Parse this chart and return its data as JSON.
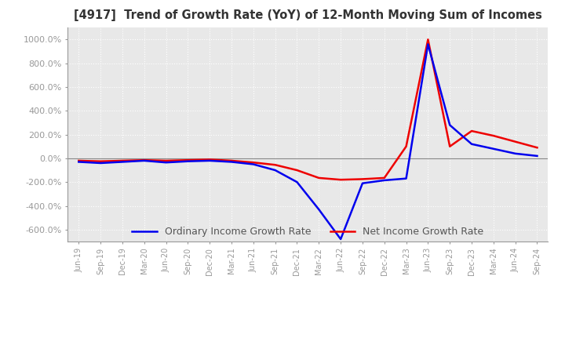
{
  "title": "[4917]  Trend of Growth Rate (YoY) of 12-Month Moving Sum of Incomes",
  "ylim": [
    -700,
    1100
  ],
  "yticks": [
    -600,
    -400,
    -200,
    0,
    200,
    400,
    600,
    800,
    1000
  ],
  "background_color": "#ffffff",
  "plot_bg_color": "#e8e8e8",
  "grid_color": "#ffffff",
  "ordinary_color": "#0000ee",
  "net_color": "#ee0000",
  "legend_labels": [
    "Ordinary Income Growth Rate",
    "Net Income Growth Rate"
  ],
  "dates": [
    "Jun-19",
    "Sep-19",
    "Dec-19",
    "Mar-20",
    "Jun-20",
    "Sep-20",
    "Dec-20",
    "Mar-21",
    "Jun-21",
    "Sep-21",
    "Dec-21",
    "Mar-22",
    "Jun-22",
    "Sep-22",
    "Dec-22",
    "Mar-23",
    "Jun-23",
    "Sep-23",
    "Dec-23",
    "Mar-24",
    "Jun-24",
    "Sep-24"
  ],
  "ordinary_values": [
    -30,
    -40,
    -30,
    -20,
    -35,
    -25,
    -20,
    -30,
    -50,
    -100,
    -200,
    -430,
    -680,
    -210,
    -185,
    -170,
    960,
    280,
    120,
    80,
    40,
    20
  ],
  "net_values": [
    -20,
    -25,
    -20,
    -15,
    -20,
    -15,
    -10,
    -20,
    -35,
    -55,
    -100,
    -165,
    -180,
    -175,
    -165,
    100,
    1000,
    100,
    230,
    190,
    140,
    90
  ]
}
